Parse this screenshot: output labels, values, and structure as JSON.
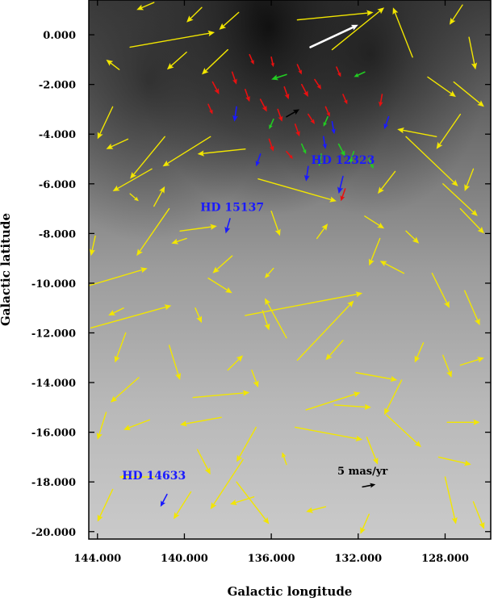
{
  "chart_data": {
    "type": "vector-field",
    "xlabel": "Galactic longitude",
    "ylabel": "Galactic latitude",
    "xlim": [
      144.4,
      125.9
    ],
    "ylim": [
      -20.3,
      1.4
    ],
    "x_ticks": [
      {
        "value": 144,
        "label": "144.000"
      },
      {
        "value": 140,
        "label": "140.000"
      },
      {
        "value": 136,
        "label": "136.000"
      },
      {
        "value": 132,
        "label": "132.000"
      },
      {
        "value": 128,
        "label": "128.000"
      }
    ],
    "y_ticks": [
      {
        "value": 0,
        "label": "0.000"
      },
      {
        "value": -2,
        "label": "-2.000"
      },
      {
        "value": -4,
        "label": "-4.000"
      },
      {
        "value": -6,
        "label": "-6.000"
      },
      {
        "value": -8,
        "label": "-8.000"
      },
      {
        "value": -10,
        "label": "-10.000"
      },
      {
        "value": -12,
        "label": "-12.000"
      },
      {
        "value": -14,
        "label": "-14.000"
      },
      {
        "value": -16,
        "label": "-16.000"
      },
      {
        "value": -18,
        "label": "-18.000"
      },
      {
        "value": -20,
        "label": "-20.000"
      }
    ],
    "background": "grayscale dust map",
    "colors": {
      "yellow": "#f2e600",
      "red": "#e81010",
      "green": "#22cc22",
      "black": "#000000",
      "blue": "#1a1aff",
      "white": "#ffffff"
    },
    "series": [
      {
        "color": "white",
        "vectors": [
          [
            134.2,
            -0.5,
            132.0,
            0.4
          ]
        ]
      },
      {
        "color": "black",
        "vectors": [
          [
            131.8,
            -18.2,
            131.2,
            -18.1
          ],
          [
            135.3,
            -3.3,
            134.7,
            -3.0
          ]
        ]
      },
      {
        "color": "blue",
        "vectors": [
          [
            137.9,
            -7.4,
            138.1,
            -8.0
          ],
          [
            140.8,
            -18.5,
            141.1,
            -19.0
          ],
          [
            132.7,
            -5.7,
            132.9,
            -6.4
          ],
          [
            134.3,
            -5.3,
            134.4,
            -5.9
          ],
          [
            137.6,
            -2.9,
            137.7,
            -3.5
          ],
          [
            136.5,
            -4.8,
            136.7,
            -5.3
          ],
          [
            133.2,
            -3.5,
            133.1,
            -4.0
          ],
          [
            130.6,
            -3.3,
            130.8,
            -3.8
          ],
          [
            133.6,
            -4.1,
            133.5,
            -4.6
          ]
        ]
      },
      {
        "color": "red",
        "vectors": [
          [
            137.0,
            -0.8,
            136.8,
            -1.2
          ],
          [
            136.0,
            -0.9,
            135.9,
            -1.3
          ],
          [
            135.4,
            -2.1,
            135.2,
            -2.6
          ],
          [
            134.6,
            -2.0,
            134.3,
            -2.5
          ],
          [
            134.0,
            -1.8,
            133.7,
            -2.2
          ],
          [
            133.0,
            -1.3,
            132.8,
            -1.7
          ],
          [
            138.7,
            -1.9,
            138.4,
            -2.4
          ],
          [
            137.8,
            -1.5,
            137.6,
            -2.0
          ],
          [
            137.2,
            -2.2,
            137.0,
            -2.7
          ],
          [
            136.5,
            -2.6,
            136.2,
            -3.1
          ],
          [
            135.7,
            -3.0,
            135.5,
            -3.5
          ],
          [
            134.9,
            -3.6,
            134.7,
            -4.1
          ],
          [
            134.3,
            -3.2,
            134.0,
            -3.6
          ],
          [
            133.5,
            -2.9,
            133.3,
            -3.3
          ],
          [
            132.7,
            -2.4,
            132.5,
            -2.8
          ],
          [
            138.9,
            -2.8,
            138.7,
            -3.2
          ],
          [
            136.1,
            -4.2,
            135.9,
            -4.7
          ],
          [
            135.3,
            -4.7,
            135.0,
            -5.0
          ],
          [
            132.6,
            -6.2,
            132.8,
            -6.7
          ],
          [
            134.8,
            -1.2,
            134.6,
            -1.6
          ],
          [
            130.9,
            -2.4,
            131.0,
            -2.9
          ]
        ]
      },
      {
        "color": "green",
        "vectors": [
          [
            135.3,
            -1.6,
            136.0,
            -1.8
          ],
          [
            133.7,
            -4.8,
            133.8,
            -5.3
          ],
          [
            132.9,
            -4.4,
            132.6,
            -4.9
          ],
          [
            132.2,
            -4.7,
            132.4,
            -5.2
          ],
          [
            135.9,
            -3.4,
            136.1,
            -3.8
          ],
          [
            133.4,
            -3.3,
            133.6,
            -3.7
          ],
          [
            134.6,
            -4.4,
            134.4,
            -4.8
          ],
          [
            131.7,
            -1.5,
            132.2,
            -1.7
          ],
          [
            131.5,
            -5.0,
            131.3,
            -5.4
          ]
        ]
      },
      {
        "color": "yellow",
        "vectors": [
          [
            141.4,
            1.3,
            142.2,
            1.0
          ],
          [
            139.2,
            1.1,
            139.9,
            0.5
          ],
          [
            137.5,
            0.9,
            138.4,
            0.2
          ],
          [
            134.8,
            0.6,
            131.3,
            0.9
          ],
          [
            142.5,
            -0.5,
            138.6,
            0.1
          ],
          [
            139.9,
            -0.7,
            140.8,
            -1.4
          ],
          [
            138.0,
            -0.6,
            139.2,
            -1.6
          ],
          [
            133.2,
            -0.6,
            130.8,
            1.1
          ],
          [
            127.2,
            1.2,
            127.8,
            0.4
          ],
          [
            129.5,
            -0.9,
            130.4,
            1.1
          ],
          [
            128.8,
            -1.7,
            127.5,
            -2.5
          ],
          [
            127.6,
            -1.9,
            126.2,
            -2.9
          ],
          [
            126.9,
            -0.1,
            126.6,
            -1.4
          ],
          [
            127.3,
            -3.2,
            128.4,
            -4.6
          ],
          [
            129.8,
            -4.1,
            127.4,
            -6.1
          ],
          [
            130.3,
            -5.5,
            131.1,
            -6.4
          ],
          [
            143.3,
            -2.9,
            144.0,
            -4.2
          ],
          [
            142.6,
            -4.2,
            143.6,
            -4.6
          ],
          [
            140.9,
            -4.1,
            142.5,
            -5.8
          ],
          [
            141.5,
            -5.4,
            143.3,
            -6.3
          ],
          [
            138.8,
            -4.1,
            141.0,
            -5.3
          ],
          [
            137.2,
            -4.6,
            139.4,
            -4.8
          ],
          [
            136.6,
            -5.8,
            133.0,
            -6.7
          ],
          [
            142.5,
            -6.4,
            142.1,
            -6.7
          ],
          [
            141.4,
            -6.9,
            140.9,
            -6.1
          ],
          [
            140.7,
            -7.0,
            142.2,
            -8.9
          ],
          [
            140.2,
            -7.9,
            138.5,
            -7.7
          ],
          [
            139.9,
            -8.2,
            140.6,
            -8.4
          ],
          [
            137.8,
            -8.9,
            138.7,
            -9.6
          ],
          [
            136.0,
            -7.1,
            135.6,
            -8.1
          ],
          [
            133.9,
            -8.2,
            133.4,
            -7.6
          ],
          [
            131.7,
            -7.3,
            130.8,
            -7.8
          ],
          [
            131.0,
            -8.2,
            131.5,
            -9.3
          ],
          [
            129.8,
            -7.9,
            129.2,
            -8.4
          ],
          [
            128.1,
            -6.0,
            126.5,
            -7.3
          ],
          [
            127.3,
            -7.0,
            126.2,
            -8.0
          ],
          [
            128.6,
            -9.6,
            127.8,
            -11.0
          ],
          [
            127.1,
            -10.3,
            126.4,
            -11.7
          ],
          [
            129.9,
            -9.6,
            131.0,
            -9.1
          ],
          [
            144.4,
            -10.1,
            141.7,
            -9.4
          ],
          [
            144.3,
            -11.8,
            140.6,
            -10.9
          ],
          [
            142.7,
            -12.0,
            143.2,
            -13.2
          ],
          [
            139.5,
            -11.0,
            139.2,
            -11.6
          ],
          [
            138.9,
            -9.8,
            137.8,
            -10.4
          ],
          [
            137.2,
            -11.3,
            131.8,
            -10.4
          ],
          [
            136.4,
            -11.1,
            136.1,
            -11.9
          ],
          [
            135.3,
            -12.2,
            136.3,
            -10.6
          ],
          [
            134.8,
            -13.1,
            132.2,
            -10.7
          ],
          [
            132.7,
            -12.3,
            133.5,
            -13.1
          ],
          [
            134.4,
            -15.1,
            131.9,
            -14.4
          ],
          [
            138.0,
            -13.5,
            137.3,
            -12.9
          ],
          [
            140.7,
            -12.5,
            140.2,
            -13.9
          ],
          [
            142.1,
            -13.8,
            143.4,
            -14.8
          ],
          [
            143.6,
            -15.2,
            144.0,
            -16.3
          ],
          [
            141.6,
            -15.5,
            142.8,
            -15.9
          ],
          [
            139.6,
            -14.6,
            137.0,
            -14.4
          ],
          [
            138.3,
            -15.4,
            140.2,
            -15.7
          ],
          [
            136.7,
            -15.8,
            137.6,
            -17.2
          ],
          [
            135.3,
            -17.3,
            135.5,
            -16.8
          ],
          [
            134.9,
            -15.8,
            131.8,
            -16.3
          ],
          [
            133.1,
            -14.9,
            131.4,
            -15.0
          ],
          [
            130.7,
            -15.3,
            129.1,
            -16.6
          ],
          [
            129.0,
            -12.4,
            129.4,
            -13.2
          ],
          [
            128.1,
            -12.9,
            127.7,
            -13.8
          ],
          [
            127.3,
            -13.3,
            126.2,
            -13.0
          ],
          [
            130.0,
            -13.9,
            130.8,
            -15.3
          ],
          [
            127.9,
            -15.6,
            126.4,
            -15.6
          ],
          [
            128.3,
            -17.0,
            126.8,
            -17.3
          ],
          [
            128.0,
            -17.8,
            127.5,
            -19.7
          ],
          [
            126.7,
            -18.8,
            126.2,
            -19.9
          ],
          [
            131.6,
            -16.2,
            131.1,
            -17.3
          ],
          [
            137.3,
            -17.1,
            138.8,
            -19.1
          ],
          [
            137.6,
            -18.0,
            136.1,
            -19.7
          ],
          [
            136.8,
            -18.6,
            137.9,
            -18.9
          ],
          [
            133.5,
            -19.0,
            134.4,
            -19.2
          ],
          [
            141.2,
            -17.8,
            143.0,
            -17.8
          ],
          [
            143.3,
            -18.3,
            144.0,
            -19.6
          ],
          [
            139.7,
            -18.4,
            140.5,
            -19.5
          ],
          [
            131.5,
            -19.3,
            131.9,
            -20.1
          ],
          [
            132.1,
            -13.6,
            130.2,
            -13.9
          ],
          [
            136.9,
            -13.5,
            136.6,
            -14.2
          ],
          [
            142.8,
            -11.0,
            143.5,
            -11.3
          ],
          [
            139.4,
            -16.7,
            138.8,
            -17.7
          ],
          [
            135.9,
            -9.4,
            136.3,
            -9.8
          ],
          [
            144.1,
            -8.1,
            144.3,
            -8.9
          ],
          [
            128.4,
            -4.1,
            130.2,
            -3.8
          ],
          [
            126.7,
            -5.4,
            127.1,
            -6.3
          ],
          [
            143.0,
            -1.4,
            143.6,
            -1.0
          ]
        ]
      }
    ],
    "annotations": [
      {
        "text": "HD 12323",
        "x": 132.7,
        "y": -5.2
      },
      {
        "text": "HD 15137",
        "x": 137.8,
        "y": -7.1
      },
      {
        "text": "HD 14633",
        "x": 141.4,
        "y": -17.9
      },
      {
        "text": "5 mas/yr",
        "x": 131.8,
        "y": -17.7
      }
    ]
  }
}
